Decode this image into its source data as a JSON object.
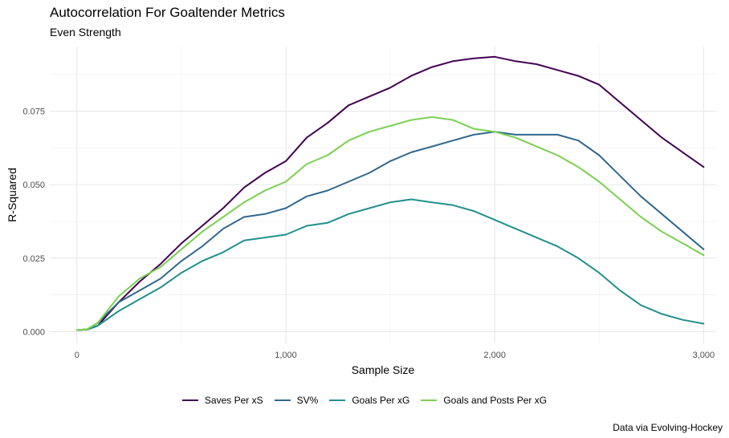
{
  "chart_data": {
    "type": "line",
    "title": "Autocorrelation For Goaltender Metrics",
    "subtitle": "Even Strength",
    "xlabel": "Sample Size",
    "ylabel": "R-Squared",
    "caption": "Data via Evolving-Hockey",
    "xlim": [
      -130,
      3060
    ],
    "ylim": [
      -0.004,
      0.097
    ],
    "x_ticks": [
      0,
      1000,
      2000,
      3000
    ],
    "x_tick_labels": [
      "0",
      "1,000",
      "2,000",
      "3,000"
    ],
    "y_ticks": [
      0,
      0.025,
      0.05,
      0.075
    ],
    "y_tick_labels": [
      "0.000",
      "0.025",
      "0.050",
      "0.075"
    ],
    "grid": true,
    "legend_position": "bottom",
    "series": [
      {
        "name": "Saves Per xS",
        "color": "#440154",
        "x": [
          0,
          50,
          100,
          200,
          300,
          400,
          500,
          600,
          700,
          800,
          900,
          1000,
          1100,
          1200,
          1300,
          1400,
          1500,
          1600,
          1700,
          1800,
          1900,
          2000,
          2100,
          2200,
          2300,
          2400,
          2500,
          2600,
          2700,
          2800,
          2900,
          3000
        ],
        "y": [
          0.0005,
          0.0007,
          0.002,
          0.01,
          0.017,
          0.023,
          0.03,
          0.036,
          0.042,
          0.049,
          0.054,
          0.058,
          0.066,
          0.071,
          0.077,
          0.08,
          0.083,
          0.087,
          0.09,
          0.092,
          0.093,
          0.0935,
          0.092,
          0.091,
          0.089,
          0.087,
          0.084,
          0.078,
          0.072,
          0.066,
          0.061,
          0.056
        ]
      },
      {
        "name": "SV%",
        "color": "#31688e",
        "x": [
          0,
          50,
          100,
          200,
          300,
          400,
          500,
          600,
          700,
          800,
          900,
          1000,
          1100,
          1200,
          1300,
          1400,
          1500,
          1600,
          1700,
          1800,
          1900,
          2000,
          2100,
          2200,
          2300,
          2400,
          2500,
          2600,
          2700,
          2800,
          2900,
          3000
        ],
        "y": [
          0.0005,
          0.0008,
          0.003,
          0.01,
          0.014,
          0.018,
          0.024,
          0.029,
          0.035,
          0.039,
          0.04,
          0.042,
          0.046,
          0.048,
          0.051,
          0.054,
          0.058,
          0.061,
          0.063,
          0.065,
          0.067,
          0.068,
          0.067,
          0.067,
          0.067,
          0.065,
          0.06,
          0.053,
          0.046,
          0.04,
          0.034,
          0.028
        ]
      },
      {
        "name": "Goals Per xG",
        "color": "#21918c",
        "x": [
          0,
          50,
          100,
          200,
          300,
          400,
          500,
          600,
          700,
          800,
          900,
          1000,
          1100,
          1200,
          1300,
          1400,
          1500,
          1600,
          1700,
          1800,
          1900,
          2000,
          2100,
          2200,
          2300,
          2400,
          2500,
          2600,
          2700,
          2800,
          2900,
          3000
        ],
        "y": [
          0.0005,
          0.0007,
          0.002,
          0.007,
          0.011,
          0.015,
          0.02,
          0.024,
          0.027,
          0.031,
          0.032,
          0.033,
          0.036,
          0.037,
          0.04,
          0.042,
          0.044,
          0.045,
          0.044,
          0.043,
          0.041,
          0.038,
          0.035,
          0.032,
          0.029,
          0.025,
          0.02,
          0.014,
          0.009,
          0.006,
          0.004,
          0.0027
        ]
      },
      {
        "name": "Goals and Posts Per xG",
        "color": "#7ad151",
        "x": [
          0,
          50,
          100,
          200,
          300,
          400,
          500,
          600,
          700,
          800,
          900,
          1000,
          1100,
          1200,
          1300,
          1400,
          1500,
          1600,
          1700,
          1800,
          1900,
          2000,
          2100,
          2200,
          2300,
          2400,
          2500,
          2600,
          2700,
          2800,
          2900,
          3000
        ],
        "y": [
          0.0005,
          0.0008,
          0.003,
          0.012,
          0.018,
          0.022,
          0.028,
          0.034,
          0.039,
          0.044,
          0.048,
          0.051,
          0.057,
          0.06,
          0.065,
          0.068,
          0.07,
          0.072,
          0.073,
          0.072,
          0.069,
          0.068,
          0.066,
          0.063,
          0.06,
          0.056,
          0.051,
          0.045,
          0.039,
          0.034,
          0.03,
          0.026
        ]
      }
    ]
  }
}
